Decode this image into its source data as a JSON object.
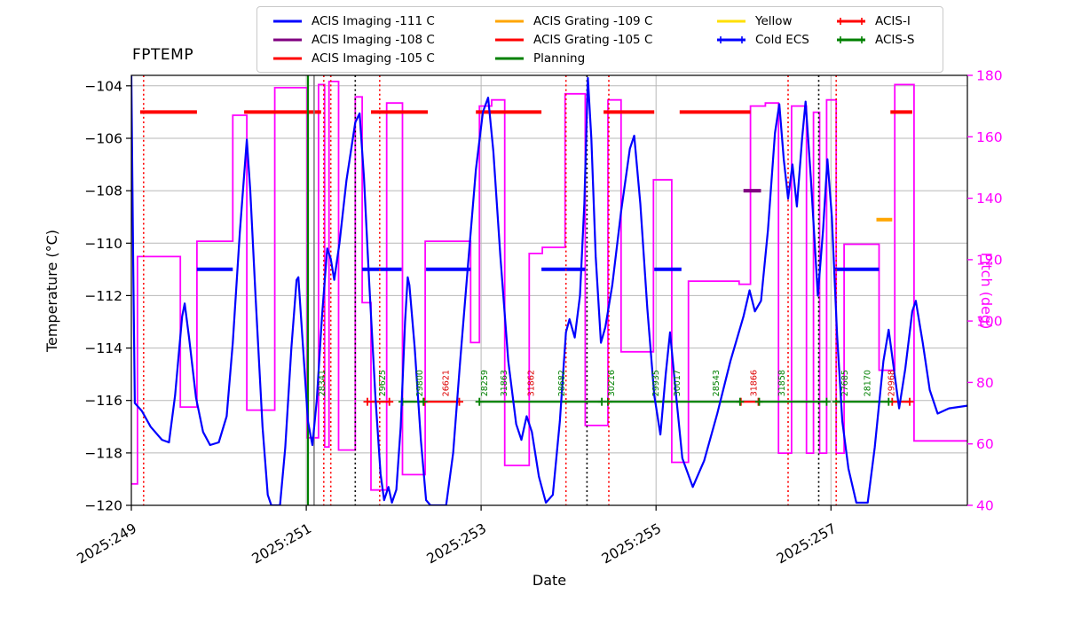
{
  "chart_data": {
    "type": "line",
    "title": "FPTEMP",
    "xlabel": "Date",
    "ylabel": "Temperature (°C)",
    "y2label": "Pitch (deg)",
    "xlim": [
      249.0,
      258.56
    ],
    "ylim": [
      -120.0,
      -103.6
    ],
    "y2lim": [
      40,
      180
    ],
    "grid": true,
    "x_ticks": [
      {
        "v": 249,
        "label": "2025:249"
      },
      {
        "v": 251,
        "label": "2025:251"
      },
      {
        "v": 253,
        "label": "2025:253"
      },
      {
        "v": 255,
        "label": "2025:255"
      },
      {
        "v": 257,
        "label": "2025:257"
      }
    ],
    "y_ticks": [
      -104,
      -106,
      -108,
      -110,
      -112,
      -114,
      -116,
      -118,
      -120
    ],
    "y2_ticks": [
      40,
      60,
      80,
      100,
      120,
      140,
      160,
      180
    ],
    "colors": {
      "fptemp": "#0000ff",
      "pitch": "#ff00ff",
      "grid": "#b8b8b8",
      "axis": "#000000",
      "planning": "#008000",
      "gray_line": "#808080",
      "red": "#ff0000",
      "purple": "#800080",
      "orange": "#ffa500",
      "yellow": "#ffdf00",
      "green": "#008000"
    },
    "series": {
      "fptemp": {
        "name": "FPTEMP",
        "color": "#0000ff",
        "points": [
          [
            249.0,
            -103.6
          ],
          [
            249.02,
            -110.5
          ],
          [
            249.04,
            -116.1
          ],
          [
            249.12,
            -116.4
          ],
          [
            249.22,
            -117.0
          ],
          [
            249.35,
            -117.5
          ],
          [
            249.43,
            -117.6
          ],
          [
            249.5,
            -115.8
          ],
          [
            249.58,
            -112.8
          ],
          [
            249.61,
            -112.3
          ],
          [
            249.66,
            -113.6
          ],
          [
            249.74,
            -115.9
          ],
          [
            249.82,
            -117.2
          ],
          [
            249.9,
            -117.7
          ],
          [
            250.0,
            -117.6
          ],
          [
            250.09,
            -116.6
          ],
          [
            250.16,
            -113.8
          ],
          [
            250.24,
            -109.6
          ],
          [
            250.32,
            -106.05
          ],
          [
            250.36,
            -108.0
          ],
          [
            250.42,
            -112.0
          ],
          [
            250.5,
            -117.0
          ],
          [
            250.56,
            -119.6
          ],
          [
            250.6,
            -120.0
          ],
          [
            250.7,
            -120.0
          ],
          [
            250.76,
            -117.8
          ],
          [
            250.83,
            -114.0
          ],
          [
            250.89,
            -111.4
          ],
          [
            250.91,
            -111.3
          ],
          [
            250.96,
            -113.8
          ],
          [
            251.02,
            -116.8
          ],
          [
            251.07,
            -117.7
          ],
          [
            251.12,
            -116.0
          ],
          [
            251.18,
            -112.8
          ],
          [
            251.24,
            -110.2
          ],
          [
            251.28,
            -110.6
          ],
          [
            251.32,
            -111.4
          ],
          [
            251.38,
            -110.0
          ],
          [
            251.46,
            -107.6
          ],
          [
            251.56,
            -105.4
          ],
          [
            251.61,
            -105.05
          ],
          [
            251.66,
            -107.5
          ],
          [
            251.72,
            -111.5
          ],
          [
            251.79,
            -115.8
          ],
          [
            251.85,
            -118.8
          ],
          [
            251.89,
            -119.8
          ],
          [
            251.94,
            -119.3
          ],
          [
            251.98,
            -119.9
          ],
          [
            252.03,
            -119.4
          ],
          [
            252.08,
            -117.0
          ],
          [
            252.13,
            -113.0
          ],
          [
            252.16,
            -111.3
          ],
          [
            252.18,
            -111.6
          ],
          [
            252.24,
            -114.0
          ],
          [
            252.31,
            -117.5
          ],
          [
            252.37,
            -119.8
          ],
          [
            252.42,
            -120.0
          ],
          [
            252.6,
            -120.0
          ],
          [
            252.68,
            -118.0
          ],
          [
            252.76,
            -114.5
          ],
          [
            252.85,
            -110.8
          ],
          [
            252.94,
            -107.2
          ],
          [
            253.02,
            -105.0
          ],
          [
            253.08,
            -104.45
          ],
          [
            253.14,
            -106.5
          ],
          [
            253.22,
            -110.5
          ],
          [
            253.31,
            -114.5
          ],
          [
            253.4,
            -116.9
          ],
          [
            253.46,
            -117.5
          ],
          [
            253.52,
            -116.6
          ],
          [
            253.58,
            -117.2
          ],
          [
            253.66,
            -118.9
          ],
          [
            253.74,
            -119.9
          ],
          [
            253.82,
            -119.6
          ],
          [
            253.9,
            -116.8
          ],
          [
            253.97,
            -113.4
          ],
          [
            254.01,
            -112.9
          ],
          [
            254.07,
            -113.6
          ],
          [
            254.13,
            -112.0
          ],
          [
            254.18,
            -108.5
          ],
          [
            254.22,
            -103.7
          ],
          [
            254.26,
            -106.0
          ],
          [
            254.31,
            -110.5
          ],
          [
            254.37,
            -113.8
          ],
          [
            254.42,
            -113.2
          ],
          [
            254.5,
            -111.6
          ],
          [
            254.6,
            -108.8
          ],
          [
            254.7,
            -106.4
          ],
          [
            254.75,
            -105.9
          ],
          [
            254.82,
            -108.5
          ],
          [
            254.9,
            -112.5
          ],
          [
            254.98,
            -115.8
          ],
          [
            255.05,
            -117.3
          ],
          [
            255.11,
            -115.0
          ],
          [
            255.16,
            -113.4
          ],
          [
            255.22,
            -115.5
          ],
          [
            255.3,
            -118.2
          ],
          [
            255.42,
            -119.3
          ],
          [
            255.55,
            -118.3
          ],
          [
            255.7,
            -116.5
          ],
          [
            255.85,
            -114.5
          ],
          [
            256.0,
            -112.8
          ],
          [
            256.07,
            -111.8
          ],
          [
            256.13,
            -112.6
          ],
          [
            256.2,
            -112.2
          ],
          [
            256.28,
            -109.5
          ],
          [
            256.36,
            -105.8
          ],
          [
            256.41,
            -104.7
          ],
          [
            256.46,
            -106.8
          ],
          [
            256.51,
            -108.3
          ],
          [
            256.56,
            -107.0
          ],
          [
            256.61,
            -108.6
          ],
          [
            256.67,
            -106.0
          ],
          [
            256.71,
            -104.6
          ],
          [
            256.77,
            -107.5
          ],
          [
            256.85,
            -112.0
          ],
          [
            256.91,
            -109.5
          ],
          [
            256.96,
            -106.8
          ],
          [
            257.01,
            -109.0
          ],
          [
            257.07,
            -113.5
          ],
          [
            257.13,
            -116.8
          ],
          [
            257.2,
            -118.6
          ],
          [
            257.29,
            -119.9
          ],
          [
            257.42,
            -119.9
          ],
          [
            257.5,
            -117.8
          ],
          [
            257.6,
            -114.5
          ],
          [
            257.66,
            -113.3
          ],
          [
            257.72,
            -114.8
          ],
          [
            257.78,
            -116.3
          ],
          [
            257.85,
            -114.8
          ],
          [
            257.93,
            -112.6
          ],
          [
            257.97,
            -112.2
          ],
          [
            258.05,
            -113.8
          ],
          [
            258.13,
            -115.6
          ],
          [
            258.22,
            -116.5
          ],
          [
            258.35,
            -116.3
          ],
          [
            258.56,
            -116.2
          ]
        ]
      },
      "pitch": {
        "name": "Pitch",
        "color": "#ff00ff",
        "step": true,
        "points": [
          [
            249.0,
            47
          ],
          [
            249.07,
            121
          ],
          [
            249.56,
            72
          ],
          [
            249.75,
            126
          ],
          [
            250.16,
            167
          ],
          [
            250.32,
            71
          ],
          [
            250.64,
            176
          ],
          [
            251.01,
            62
          ],
          [
            251.14,
            177
          ],
          [
            251.21,
            59
          ],
          [
            251.26,
            178
          ],
          [
            251.37,
            58
          ],
          [
            251.56,
            173
          ],
          [
            251.64,
            106
          ],
          [
            251.74,
            45
          ],
          [
            251.92,
            171
          ],
          [
            252.1,
            50
          ],
          [
            252.36,
            126
          ],
          [
            252.88,
            93
          ],
          [
            252.98,
            170
          ],
          [
            253.12,
            172
          ],
          [
            253.27,
            53
          ],
          [
            253.55,
            122
          ],
          [
            253.7,
            124
          ],
          [
            253.96,
            174
          ],
          [
            254.19,
            66
          ],
          [
            254.45,
            172
          ],
          [
            254.6,
            90
          ],
          [
            254.97,
            146
          ],
          [
            255.18,
            54
          ],
          [
            255.37,
            113
          ],
          [
            255.95,
            112
          ],
          [
            256.08,
            170
          ],
          [
            256.25,
            171
          ],
          [
            256.4,
            57
          ],
          [
            256.55,
            170
          ],
          [
            256.72,
            57
          ],
          [
            256.8,
            168
          ],
          [
            256.87,
            57
          ],
          [
            256.95,
            172
          ],
          [
            257.06,
            57
          ],
          [
            257.15,
            125
          ],
          [
            257.55,
            84
          ],
          [
            257.73,
            177
          ],
          [
            257.95,
            61
          ],
          [
            258.56,
            61
          ]
        ]
      }
    },
    "segments": [
      {
        "name": "ACIS Imaging -111 C",
        "temp": -111,
        "color": "#0000ff",
        "width": 4,
        "markers": false,
        "ranges": [
          [
            249.75,
            250.16
          ],
          [
            251.64,
            252.09
          ],
          [
            252.37,
            252.88
          ],
          [
            253.69,
            254.19
          ],
          [
            254.98,
            255.29
          ],
          [
            257.04,
            257.55
          ]
        ]
      },
      {
        "name": "ACIS Imaging -108 C",
        "temp": -108,
        "color": "#800080",
        "width": 4,
        "markers": false,
        "ranges": [
          [
            256.0,
            256.2
          ]
        ]
      },
      {
        "name": "ACIS Imaging -105 C",
        "temp": -105,
        "color": "#ff0000",
        "width": 4,
        "markers": false,
        "ranges": [
          [
            249.1,
            249.75
          ],
          [
            250.29,
            251.17
          ],
          [
            251.74,
            252.39
          ],
          [
            252.94,
            253.69
          ],
          [
            254.4,
            254.98
          ],
          [
            255.27,
            256.08
          ],
          [
            257.68,
            257.93
          ]
        ]
      },
      {
        "name": "ACIS Grating -109 C",
        "temp": -109.1,
        "color": "#ffa500",
        "width": 4,
        "markers": false,
        "ranges": [
          [
            257.52,
            257.7
          ]
        ]
      },
      {
        "name": "ACIS-I",
        "temp": -116.05,
        "color": "#ff0000",
        "width": 2.2,
        "markers": true,
        "ranges": [
          [
            251.7,
            251.95
          ],
          [
            252.35,
            252.75
          ],
          [
            255.97,
            256.17
          ],
          [
            257.7,
            257.9
          ]
        ]
      },
      {
        "name": "ACIS-S",
        "temp": -116.05,
        "color": "#008000",
        "width": 2.2,
        "markers": true,
        "ranges": [
          [
            252.1,
            252.34
          ],
          [
            252.98,
            254.38
          ],
          [
            254.45,
            255.96
          ],
          [
            256.18,
            256.95
          ],
          [
            257.06,
            257.66
          ]
        ]
      }
    ],
    "vlines": [
      {
        "day": 249.14,
        "color": "#ff0000",
        "style": "dotted"
      },
      {
        "day": 251.02,
        "color": "#008000",
        "style": "solid"
      },
      {
        "day": 251.09,
        "color": "#808080",
        "style": "solid"
      },
      {
        "day": 251.2,
        "color": "#ff0000",
        "style": "dotted"
      },
      {
        "day": 251.28,
        "color": "#ff0000",
        "style": "dotted"
      },
      {
        "day": 251.56,
        "color": "#000000",
        "style": "dotted"
      },
      {
        "day": 251.84,
        "color": "#ff0000",
        "style": "dotted"
      },
      {
        "day": 253.97,
        "color": "#ff0000",
        "style": "dotted"
      },
      {
        "day": 254.21,
        "color": "#000000",
        "style": "dotted"
      },
      {
        "day": 254.46,
        "color": "#ff0000",
        "style": "dotted"
      },
      {
        "day": 256.51,
        "color": "#ff0000",
        "style": "dotted"
      },
      {
        "day": 256.86,
        "color": "#000000",
        "style": "dotted"
      },
      {
        "day": 257.06,
        "color": "#ff0000",
        "style": "dotted"
      }
    ],
    "obsid_labels": [
      {
        "day": 251.18,
        "id": "28341",
        "color": "#008000"
      },
      {
        "day": 251.87,
        "id": "29625",
        "color": "#008000"
      },
      {
        "day": 252.3,
        "id": "29800",
        "color": "#008000"
      },
      {
        "day": 252.6,
        "id": "26621",
        "color": "#dd0000"
      },
      {
        "day": 253.04,
        "id": "28259",
        "color": "#008000"
      },
      {
        "day": 253.26,
        "id": "31863",
        "color": "#008000"
      },
      {
        "day": 253.57,
        "id": "31862",
        "color": "#dd0000"
      },
      {
        "day": 253.92,
        "id": "28682",
        "color": "#008000"
      },
      {
        "day": 254.49,
        "id": "30216",
        "color": "#008000"
      },
      {
        "day": 255.0,
        "id": "29935",
        "color": "#008000"
      },
      {
        "day": 255.24,
        "id": "30017",
        "color": "#008000"
      },
      {
        "day": 255.69,
        "id": "28543",
        "color": "#008000"
      },
      {
        "day": 256.12,
        "id": "31866",
        "color": "#dd0000"
      },
      {
        "day": 256.44,
        "id": "31858",
        "color": "#008000"
      },
      {
        "day": 257.16,
        "id": "27685",
        "color": "#008000"
      },
      {
        "day": 257.42,
        "id": "28170",
        "color": "#008000"
      },
      {
        "day": 257.69,
        "id": "29968",
        "color": "#dd0000"
      }
    ],
    "legend": {
      "columns": [
        [
          {
            "label": "ACIS Imaging -111 C",
            "color": "#0000ff",
            "markers": false
          },
          {
            "label": "ACIS Imaging -108 C",
            "color": "#800080",
            "markers": false
          },
          {
            "label": "ACIS Imaging -105 C",
            "color": "#ff0000",
            "markers": false
          }
        ],
        [
          {
            "label": "ACIS Grating -109 C",
            "color": "#ffa500",
            "markers": false
          },
          {
            "label": "ACIS Grating -105 C",
            "color": "#ff0000",
            "markers": false
          },
          {
            "label": "Planning",
            "color": "#008000",
            "markers": false
          }
        ],
        [
          {
            "label": "Yellow",
            "color": "#ffdf00",
            "markers": false
          },
          {
            "label": "Cold ECS",
            "color": "#0000ff",
            "markers": true
          }
        ],
        [
          {
            "label": "ACIS-I",
            "color": "#ff0000",
            "markers": true
          },
          {
            "label": "ACIS-S",
            "color": "#008000",
            "markers": true
          }
        ]
      ]
    }
  }
}
